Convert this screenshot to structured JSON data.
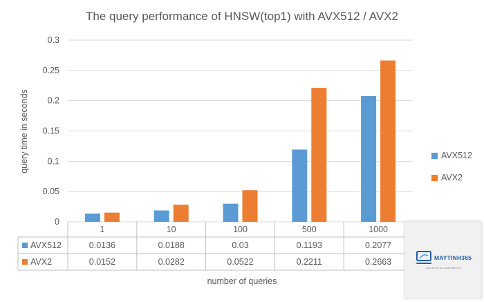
{
  "chart_data": {
    "type": "bar",
    "title": "The query performance  of HNSW(top1)  with AVX512  / AVX2",
    "xlabel": "number of queries",
    "ylabel": "query time in seconds",
    "categories": [
      "1",
      "10",
      "100",
      "500",
      "1000"
    ],
    "y_ticks": [
      "0",
      "0.05",
      "0.1",
      "0.15",
      "0.2",
      "0.25",
      "0.3"
    ],
    "ylim": [
      0,
      0.3
    ],
    "grid": true,
    "legend": "right",
    "series": [
      {
        "name": "AVX512",
        "color": "#5b9bd5",
        "values": [
          0.0136,
          0.0188,
          0.03,
          0.1193,
          0.2077
        ],
        "labels": [
          "0.0136",
          "0.0188",
          "0.03",
          "0.1193",
          "0.2077"
        ]
      },
      {
        "name": "AVX2",
        "color": "#ed7d31",
        "values": [
          0.0152,
          0.0282,
          0.0522,
          0.2211,
          0.2663
        ],
        "labels": [
          "0.0152",
          "0.0282",
          "0.0522",
          "0.2211",
          "0.2663"
        ]
      }
    ]
  },
  "watermark": {
    "brand": "MAYTINH365",
    "tagline": "Chia sẻ & Thủ thuật Máy tính",
    "icon": "laptop-icon"
  }
}
